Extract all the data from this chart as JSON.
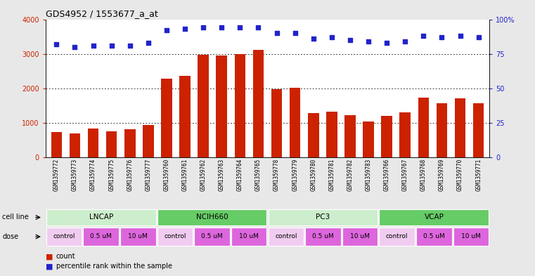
{
  "title": "GDS4952 / 1553677_a_at",
  "samples": [
    "GSM1359772",
    "GSM1359773",
    "GSM1359774",
    "GSM1359775",
    "GSM1359776",
    "GSM1359777",
    "GSM1359760",
    "GSM1359761",
    "GSM1359762",
    "GSM1359763",
    "GSM1359764",
    "GSM1359765",
    "GSM1359778",
    "GSM1359779",
    "GSM1359780",
    "GSM1359781",
    "GSM1359782",
    "GSM1359783",
    "GSM1359766",
    "GSM1359767",
    "GSM1359768",
    "GSM1359769",
    "GSM1359770",
    "GSM1359771"
  ],
  "counts": [
    730,
    690,
    840,
    760,
    820,
    940,
    2280,
    2360,
    2970,
    2950,
    2990,
    3120,
    1970,
    2010,
    1280,
    1330,
    1220,
    1040,
    1210,
    1310,
    1730,
    1570,
    1700,
    1570
  ],
  "percentile_ranks": [
    82,
    80,
    81,
    81,
    81,
    83,
    92,
    93,
    94,
    94,
    94,
    94,
    90,
    90,
    86,
    87,
    85,
    84,
    83,
    84,
    88,
    87,
    88,
    87
  ],
  "bar_color": "#cc2200",
  "dot_color": "#2222cc",
  "cell_lines": [
    {
      "name": "LNCAP",
      "start": 0,
      "end": 6,
      "color": "#cceecc"
    },
    {
      "name": "NCIH660",
      "start": 6,
      "end": 12,
      "color": "#66cc66"
    },
    {
      "name": "PC3",
      "start": 12,
      "end": 18,
      "color": "#cceecc"
    },
    {
      "name": "VCAP",
      "start": 18,
      "end": 24,
      "color": "#66cc66"
    }
  ],
  "dose_groups": [
    {
      "label": "control",
      "start": 0,
      "end": 2,
      "bg": "#f0ccf0"
    },
    {
      "label": "0.5 uM",
      "start": 2,
      "end": 4,
      "bg": "#dd66dd"
    },
    {
      "label": "10 uM",
      "start": 4,
      "end": 6,
      "bg": "#dd66dd"
    },
    {
      "label": "control",
      "start": 6,
      "end": 8,
      "bg": "#f0ccf0"
    },
    {
      "label": "0.5 uM",
      "start": 8,
      "end": 10,
      "bg": "#dd66dd"
    },
    {
      "label": "10 uM",
      "start": 10,
      "end": 12,
      "bg": "#dd66dd"
    },
    {
      "label": "control",
      "start": 12,
      "end": 14,
      "bg": "#f0ccf0"
    },
    {
      "label": "0.5 uM",
      "start": 14,
      "end": 16,
      "bg": "#dd66dd"
    },
    {
      "label": "10 uM",
      "start": 16,
      "end": 18,
      "bg": "#dd66dd"
    },
    {
      "label": "control",
      "start": 18,
      "end": 20,
      "bg": "#f0ccf0"
    },
    {
      "label": "0.5 uM",
      "start": 20,
      "end": 22,
      "bg": "#dd66dd"
    },
    {
      "label": "10 uM",
      "start": 22,
      "end": 24,
      "bg": "#dd66dd"
    }
  ],
  "ylim_left": [
    0,
    4000
  ],
  "ylim_right": [
    0,
    100
  ],
  "yticks_left": [
    0,
    1000,
    2000,
    3000,
    4000
  ],
  "yticks_right": [
    0,
    25,
    50,
    75,
    100
  ],
  "background_color": "#e8e8e8",
  "plot_bg": "#ffffff",
  "xticklabel_bg": "#d8d8d8"
}
